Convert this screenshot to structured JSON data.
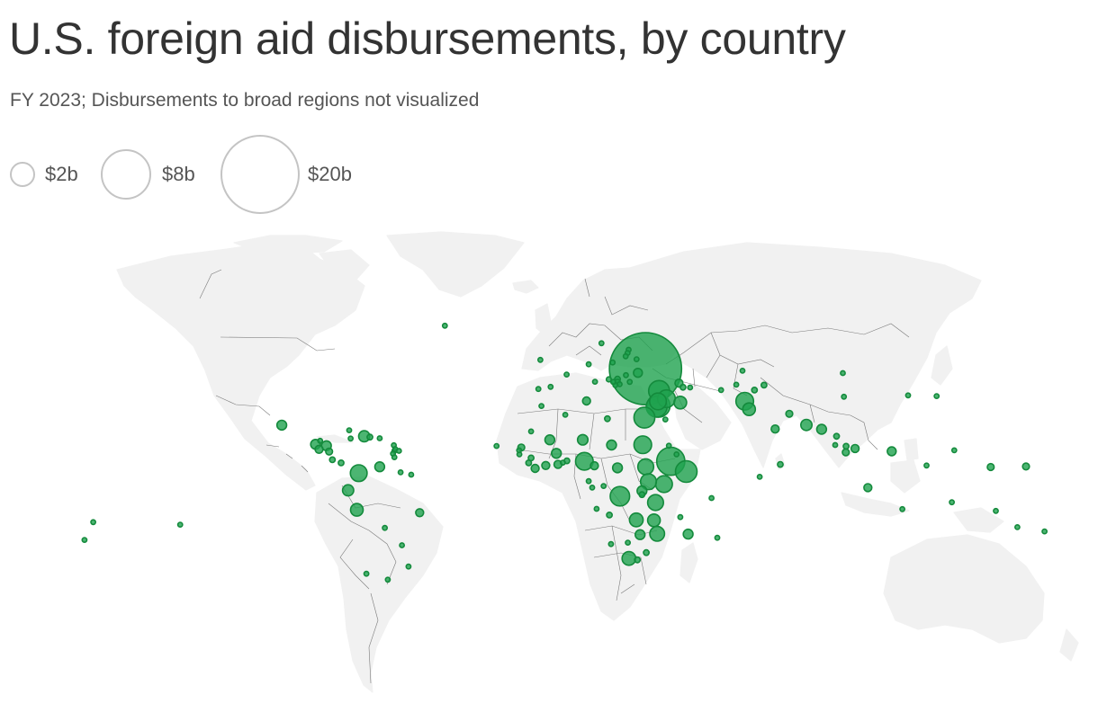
{
  "title": "U.S. foreign aid disbursements, by country",
  "subtitle": "FY 2023; Disbursements to broad regions not visualized",
  "colors": {
    "bubble_fill": "#1fa24f",
    "bubble_fill_opacity": 0.8,
    "bubble_stroke": "#148a3c",
    "land": "#f1f1f1",
    "border": "#7a7a7a",
    "legend_stroke": "#c4c4c4"
  },
  "legend": {
    "items": [
      {
        "label": "$2b",
        "value": 2
      },
      {
        "label": "$8b",
        "value": 8
      },
      {
        "label": "$20b",
        "value": 20
      }
    ]
  },
  "map_data": {
    "type": "proportional-symbol-map",
    "projection": "world (Robinson-like)",
    "unit": "billion USD",
    "points": [
      {
        "lon": 31.2,
        "lat": 49.0,
        "value": 16.6
      },
      {
        "lon": 36.2,
        "lat": 38.5,
        "value": 1.4
      },
      {
        "lon": 36.0,
        "lat": 31.9,
        "value": 1.7
      },
      {
        "lon": 35.3,
        "lat": 31.5,
        "value": 1.4
      },
      {
        "lon": 35.8,
        "lat": 33.8,
        "value": 0.9
      },
      {
        "lon": 38.9,
        "lat": 35.0,
        "value": 1.0
      },
      {
        "lon": 44.0,
        "lat": 33.3,
        "value": 0.5
      },
      {
        "lon": 30.8,
        "lat": 26.8,
        "value": 1.4
      },
      {
        "lon": 38.5,
        "lat": 26.0,
        "value": 0.06
      },
      {
        "lon": 45.0,
        "lat": 40.2,
        "value": 0.1
      },
      {
        "lon": 43.5,
        "lat": 42.1,
        "value": 0.2
      },
      {
        "lon": 47.6,
        "lat": 40.1,
        "value": 0.05
      },
      {
        "lon": 28.4,
        "lat": 47.0,
        "value": 0.25
      },
      {
        "lon": 27.9,
        "lat": 53.7,
        "value": 0.06
      },
      {
        "lon": 19.1,
        "lat": 52.1,
        "value": 0.05
      },
      {
        "lon": 20.9,
        "lat": 44.0,
        "value": 0.1
      },
      {
        "lon": 17.7,
        "lat": 43.9,
        "value": 0.08
      },
      {
        "lon": 21.7,
        "lat": 41.6,
        "value": 0.06
      },
      {
        "lon": 20.9,
        "lat": 42.6,
        "value": 0.1
      },
      {
        "lon": 20.1,
        "lat": 41.2,
        "value": 0.05
      },
      {
        "lon": 19.3,
        "lat": 42.7,
        "value": 0.04
      },
      {
        "lon": 25.4,
        "lat": 42.7,
        "value": 0.05
      },
      {
        "lon": 24.0,
        "lat": 45.9,
        "value": 0.05
      },
      {
        "lon": 25.0,
        "lat": 58.6,
        "value": 0.06
      },
      {
        "lon": 24.6,
        "lat": 56.9,
        "value": 0.05
      },
      {
        "lon": 23.9,
        "lat": 55.2,
        "value": 0.05
      },
      {
        "lon": 15.0,
        "lat": 62.0,
        "value": 0.04
      },
      {
        "lon": 10.3,
        "lat": 51.2,
        "value": 0.04
      },
      {
        "lon": 2.2,
        "lat": 46.2,
        "value": 0.04
      },
      {
        "lon": 12.6,
        "lat": 42.8,
        "value": 0.04
      },
      {
        "lon": -3.7,
        "lat": 40.4,
        "value": 0.03
      },
      {
        "lon": -8.2,
        "lat": 39.4,
        "value": 0.03
      },
      {
        "lon": -7.5,
        "lat": 53.4,
        "value": 0.03
      },
      {
        "lon": -42.6,
        "lat": 71.7,
        "value": 0.03
      },
      {
        "lon": 67.7,
        "lat": 33.9,
        "value": 1.0
      },
      {
        "lon": 69.3,
        "lat": 30.4,
        "value": 0.5
      },
      {
        "lon": 66.9,
        "lat": 48.0,
        "value": 0.05
      },
      {
        "lon": 64.6,
        "lat": 41.4,
        "value": 0.05
      },
      {
        "lon": 71.3,
        "lat": 38.9,
        "value": 0.1
      },
      {
        "lon": 74.8,
        "lat": 41.2,
        "value": 0.1
      },
      {
        "lon": 59.0,
        "lat": 38.9,
        "value": 0.03
      },
      {
        "lon": 103.8,
        "lat": 46.9,
        "value": 0.05
      },
      {
        "lon": 84.1,
        "lat": 28.4,
        "value": 0.15
      },
      {
        "lon": 90.4,
        "lat": 23.7,
        "value": 0.4
      },
      {
        "lon": 78.9,
        "lat": 22.0,
        "value": 0.2
      },
      {
        "lon": 80.8,
        "lat": 7.9,
        "value": 0.1
      },
      {
        "lon": 96.0,
        "lat": 21.9,
        "value": 0.3
      },
      {
        "lon": 101.5,
        "lat": 19.0,
        "value": 0.1
      },
      {
        "lon": 105.0,
        "lat": 15.0,
        "value": 0.1
      },
      {
        "lon": 108.3,
        "lat": 14.1,
        "value": 0.2
      },
      {
        "lon": 101.0,
        "lat": 15.5,
        "value": 0.05
      },
      {
        "lon": 104.9,
        "lat": 12.6,
        "value": 0.15
      },
      {
        "lon": 121.8,
        "lat": 13.0,
        "value": 0.25
      },
      {
        "lon": 113.0,
        "lat": -0.8,
        "value": 0.2
      },
      {
        "lon": 125.7,
        "lat": -8.9,
        "value": 0.04
      },
      {
        "lon": 143.9,
        "lat": -6.3,
        "value": 0.05
      },
      {
        "lon": 160.1,
        "lat": -9.6,
        "value": 0.03
      },
      {
        "lon": 168.0,
        "lat": -16.0,
        "value": 0.03
      },
      {
        "lon": 178.0,
        "lat": -17.7,
        "value": 0.03
      },
      {
        "lon": 158.2,
        "lat": 6.9,
        "value": 0.15
      },
      {
        "lon": 171.2,
        "lat": 7.1,
        "value": 0.15
      },
      {
        "lon": 134.6,
        "lat": 7.5,
        "value": 0.03
      },
      {
        "lon": 144.8,
        "lat": 13.4,
        "value": 0.03
      },
      {
        "lon": 127.8,
        "lat": 36.5,
        "value": 0.03
      },
      {
        "lon": 138.3,
        "lat": 36.2,
        "value": 0.03
      },
      {
        "lon": 73.2,
        "lat": 3.2,
        "value": 0.03
      },
      {
        "lon": 55.5,
        "lat": -4.7,
        "value": 0.02
      },
      {
        "lon": 57.6,
        "lat": -20.3,
        "value": 0.02
      },
      {
        "lon": 44.0,
        "lat": -12.0,
        "value": 0.02
      },
      {
        "lon": 104.2,
        "lat": 35.9,
        "value": 0.04
      },
      {
        "lon": -102.6,
        "lat": 23.6,
        "value": 0.3
      },
      {
        "lon": -90.2,
        "lat": 15.8,
        "value": 0.3
      },
      {
        "lon": -88.9,
        "lat": 13.8,
        "value": 0.2
      },
      {
        "lon": -86.2,
        "lat": 15.2,
        "value": 0.3
      },
      {
        "lon": -85.2,
        "lat": 12.9,
        "value": 0.15
      },
      {
        "lon": -84.0,
        "lat": 9.7,
        "value": 0.1
      },
      {
        "lon": -80.8,
        "lat": 8.5,
        "value": 0.1
      },
      {
        "lon": -88.5,
        "lat": 17.2,
        "value": 0.03
      },
      {
        "lon": -77.8,
        "lat": 21.5,
        "value": 0.04
      },
      {
        "lon": -72.3,
        "lat": 19.0,
        "value": 0.4
      },
      {
        "lon": -70.2,
        "lat": 18.7,
        "value": 0.1
      },
      {
        "lon": -77.3,
        "lat": 18.1,
        "value": 0.05
      },
      {
        "lon": -66.6,
        "lat": 18.2,
        "value": 0.02
      },
      {
        "lon": -61.2,
        "lat": 13.2,
        "value": 0.02
      },
      {
        "lon": -61.4,
        "lat": 15.4,
        "value": 0.02
      },
      {
        "lon": -60.9,
        "lat": 13.9,
        "value": 0.02
      },
      {
        "lon": -61.7,
        "lat": 12.1,
        "value": 0.02
      },
      {
        "lon": -59.5,
        "lat": 13.2,
        "value": 0.02
      },
      {
        "lon": -61.2,
        "lat": 10.7,
        "value": 0.02
      },
      {
        "lon": -66.6,
        "lat": 7.0,
        "value": 0.3
      },
      {
        "lon": -74.3,
        "lat": 4.6,
        "value": 0.9
      },
      {
        "lon": -78.2,
        "lat": -1.8,
        "value": 0.4
      },
      {
        "lon": -75.0,
        "lat": -9.2,
        "value": 0.5
      },
      {
        "lon": -64.7,
        "lat": -16.3,
        "value": 0.05
      },
      {
        "lon": -51.9,
        "lat": -10.3,
        "value": 0.2
      },
      {
        "lon": -58.9,
        "lat": 4.9,
        "value": 0.03
      },
      {
        "lon": -55.0,
        "lat": 4.0,
        "value": 0.02
      },
      {
        "lon": -58.4,
        "lat": -23.4,
        "value": 0.04
      },
      {
        "lon": -56.0,
        "lat": -32.5,
        "value": 0.03
      },
      {
        "lon": -63.6,
        "lat": -38.4,
        "value": 0.03
      },
      {
        "lon": -71.5,
        "lat": -35.7,
        "value": 0.03
      },
      {
        "lon": -140.0,
        "lat": -15.0,
        "value": 0.02
      },
      {
        "lon": -172.0,
        "lat": -14.0,
        "value": 0.02
      },
      {
        "lon": -175.2,
        "lat": -21.2,
        "value": 0.02
      },
      {
        "lon": -7.1,
        "lat": 31.8,
        "value": 0.06
      },
      {
        "lon": 1.7,
        "lat": 28.0,
        "value": 0.05
      },
      {
        "lon": 9.5,
        "lat": 34.0,
        "value": 0.2
      },
      {
        "lon": 17.2,
        "lat": 26.3,
        "value": 0.1
      },
      {
        "lon": -10.9,
        "lat": 21.0,
        "value": 0.06
      },
      {
        "lon": -4.0,
        "lat": 17.6,
        "value": 0.3
      },
      {
        "lon": 8.1,
        "lat": 17.6,
        "value": 0.35
      },
      {
        "lon": 18.7,
        "lat": 15.5,
        "value": 0.3
      },
      {
        "lon": 30.2,
        "lat": 15.6,
        "value": 1.0
      },
      {
        "lon": 31.3,
        "lat": 7.0,
        "value": 0.8
      },
      {
        "lon": 40.5,
        "lat": 9.1,
        "value": 2.5
      },
      {
        "lon": 46.2,
        "lat": 5.2,
        "value": 1.5
      },
      {
        "lon": 38.0,
        "lat": 0.5,
        "value": 0.9
      },
      {
        "lon": 32.3,
        "lat": 1.4,
        "value": 0.8
      },
      {
        "lon": 34.9,
        "lat": -6.4,
        "value": 0.8
      },
      {
        "lon": 21.8,
        "lat": -4.0,
        "value": 1.2
      },
      {
        "lon": 29.9,
        "lat": -2.0,
        "value": 0.3
      },
      {
        "lon": 29.9,
        "lat": -3.4,
        "value": 0.1
      },
      {
        "lon": 34.3,
        "lat": -13.3,
        "value": 0.5
      },
      {
        "lon": 35.5,
        "lat": -18.7,
        "value": 0.7
      },
      {
        "lon": 27.8,
        "lat": -13.1,
        "value": 0.6
      },
      {
        "lon": 17.9,
        "lat": -11.2,
        "value": 0.1
      },
      {
        "lon": 29.2,
        "lat": -19.0,
        "value": 0.3
      },
      {
        "lon": 46.9,
        "lat": -18.8,
        "value": 0.3
      },
      {
        "lon": 24.7,
        "lat": -22.3,
        "value": 0.04
      },
      {
        "lon": 18.5,
        "lat": -22.9,
        "value": 0.05
      },
      {
        "lon": 25.1,
        "lat": -29.0,
        "value": 0.6
      },
      {
        "lon": 31.5,
        "lat": -26.5,
        "value": 0.1
      },
      {
        "lon": 28.2,
        "lat": -29.6,
        "value": 0.1
      },
      {
        "lon": 42.6,
        "lat": 11.8,
        "value": 0.04
      },
      {
        "lon": 39.8,
        "lat": 15.2,
        "value": 0.02
      },
      {
        "lon": 8.7,
        "lat": 9.1,
        "value": 1.0
      },
      {
        "lon": 12.4,
        "lat": 7.4,
        "value": 0.2
      },
      {
        "lon": 20.9,
        "lat": 6.6,
        "value": 0.3
      },
      {
        "lon": 2.3,
        "lat": 9.3,
        "value": 0.1
      },
      {
        "lon": 0.8,
        "lat": 8.6,
        "value": 0.05
      },
      {
        "lon": -1.0,
        "lat": 7.9,
        "value": 0.2
      },
      {
        "lon": -1.6,
        "lat": 12.2,
        "value": 0.3
      },
      {
        "lon": -5.5,
        "lat": 7.5,
        "value": 0.2
      },
      {
        "lon": -9.4,
        "lat": 6.4,
        "value": 0.2
      },
      {
        "lon": -11.8,
        "lat": 8.5,
        "value": 0.1
      },
      {
        "lon": -10.9,
        "lat": 10.4,
        "value": 0.1
      },
      {
        "lon": -15.2,
        "lat": 11.8,
        "value": 0.03
      },
      {
        "lon": -15.3,
        "lat": 13.4,
        "value": 0.03
      },
      {
        "lon": -14.5,
        "lat": 14.5,
        "value": 0.15
      },
      {
        "lon": -23.6,
        "lat": 15.1,
        "value": 0.02
      },
      {
        "lon": 11.6,
        "lat": -0.8,
        "value": 0.02
      },
      {
        "lon": 10.3,
        "lat": 1.6,
        "value": 0.02
      },
      {
        "lon": 15.8,
        "lat": -0.2,
        "value": 0.03
      },
      {
        "lon": 13.2,
        "lat": -8.8,
        "value": 0.03
      }
    ]
  }
}
